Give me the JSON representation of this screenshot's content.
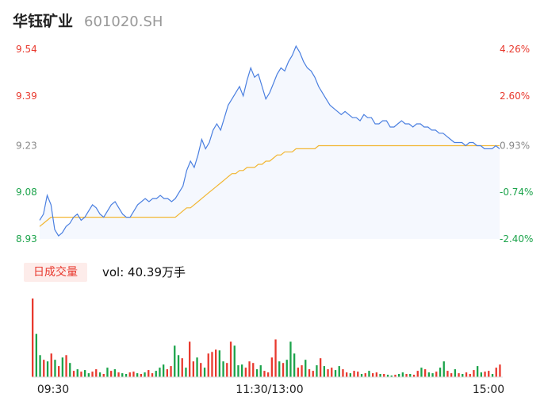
{
  "header": {
    "name": "华钰矿业",
    "code": "601020.SH"
  },
  "volume_legend": {
    "tag": "日成交量",
    "value_text": "vol: 40.39万手"
  },
  "colors": {
    "up": "#e8392e",
    "down": "#1ba34a",
    "price_line": "#4a7fe0",
    "avg_line": "#f2b632",
    "area_fill": "#f5f8fe"
  },
  "chart_data": [
    {
      "type": "line",
      "title": "",
      "y_left_ticks": [
        "9.54",
        "9.39",
        "9.23",
        "9.08",
        "8.93"
      ],
      "y_right_ticks": [
        "4.26%",
        "2.60%",
        "0.93%",
        "-0.74%",
        "-2.40%"
      ],
      "y_left_values": [
        9.54,
        9.39,
        9.23,
        9.08,
        8.93
      ],
      "ylim": [
        8.93,
        9.54
      ],
      "x_ticks": [
        "09:30",
        "11:30/13:00",
        "15:00"
      ],
      "series": [
        {
          "key": "price",
          "values": [
            8.99,
            9.01,
            9.07,
            9.04,
            8.96,
            8.94,
            8.95,
            8.97,
            8.98,
            9.0,
            9.01,
            8.99,
            9.0,
            9.02,
            9.04,
            9.03,
            9.01,
            9.0,
            9.02,
            9.04,
            9.05,
            9.03,
            9.01,
            9.0,
            9.0,
            9.02,
            9.04,
            9.05,
            9.06,
            9.05,
            9.06,
            9.06,
            9.07,
            9.06,
            9.06,
            9.05,
            9.06,
            9.08,
            9.1,
            9.15,
            9.18,
            9.16,
            9.2,
            9.25,
            9.22,
            9.24,
            9.28,
            9.3,
            9.28,
            9.32,
            9.36,
            9.38,
            9.4,
            9.42,
            9.39,
            9.44,
            9.48,
            9.45,
            9.46,
            9.42,
            9.38,
            9.4,
            9.43,
            9.46,
            9.48,
            9.47,
            9.5,
            9.52,
            9.55,
            9.53,
            9.5,
            9.48,
            9.47,
            9.45,
            9.42,
            9.4,
            9.38,
            9.36,
            9.35,
            9.34,
            9.33,
            9.34,
            9.33,
            9.32,
            9.32,
            9.31,
            9.33,
            9.32,
            9.32,
            9.3,
            9.3,
            9.31,
            9.31,
            9.29,
            9.29,
            9.3,
            9.31,
            9.3,
            9.3,
            9.29,
            9.3,
            9.3,
            9.29,
            9.29,
            9.28,
            9.28,
            9.27,
            9.27,
            9.26,
            9.25,
            9.24,
            9.24,
            9.24,
            9.23,
            9.24,
            9.24,
            9.23,
            9.23,
            9.22,
            9.22,
            9.22,
            9.23,
            9.22
          ]
        },
        {
          "key": "average",
          "values": [
            8.97,
            8.98,
            8.99,
            9.0,
            9.0,
            9.0,
            9.0,
            9.0,
            9.0,
            9.0,
            9.0,
            9.0,
            9.0,
            9.0,
            9.0,
            9.0,
            9.0,
            9.0,
            9.0,
            9.0,
            9.0,
            9.0,
            9.0,
            9.0,
            9.0,
            9.0,
            9.0,
            9.0,
            9.0,
            9.0,
            9.0,
            9.0,
            9.0,
            9.0,
            9.0,
            9.0,
            9.0,
            9.01,
            9.02,
            9.03,
            9.03,
            9.04,
            9.05,
            9.06,
            9.07,
            9.08,
            9.09,
            9.1,
            9.11,
            9.12,
            9.13,
            9.14,
            9.14,
            9.15,
            9.15,
            9.16,
            9.16,
            9.16,
            9.17,
            9.17,
            9.18,
            9.18,
            9.19,
            9.2,
            9.2,
            9.21,
            9.21,
            9.21,
            9.22,
            9.22,
            9.22,
            9.22,
            9.22,
            9.22,
            9.23,
            9.23,
            9.23,
            9.23,
            9.23,
            9.23,
            9.23,
            9.23,
            9.23,
            9.23,
            9.23,
            9.23,
            9.23,
            9.23,
            9.23,
            9.23,
            9.23,
            9.23,
            9.23,
            9.23,
            9.23,
            9.23,
            9.23,
            9.23,
            9.23,
            9.23,
            9.23,
            9.23,
            9.23,
            9.23,
            9.23,
            9.23,
            9.23,
            9.23,
            9.23,
            9.23,
            9.23,
            9.23,
            9.23,
            9.23,
            9.23,
            9.23,
            9.23,
            9.23,
            9.23,
            9.23,
            9.23,
            9.23,
            9.23
          ]
        }
      ]
    },
    {
      "type": "bar",
      "title": "",
      "x_ticks": [
        "09:30",
        "11:30/13:00",
        "15:00"
      ],
      "values": [
        100,
        55,
        28,
        22,
        20,
        30,
        22,
        14,
        25,
        28,
        18,
        8,
        10,
        7,
        9,
        5,
        7,
        10,
        6,
        4,
        12,
        8,
        10,
        6,
        5,
        4,
        6,
        7,
        5,
        4,
        6,
        9,
        5,
        8,
        12,
        16,
        10,
        14,
        40,
        28,
        24,
        12,
        45,
        20,
        25,
        18,
        12,
        30,
        32,
        35,
        34,
        20,
        18,
        45,
        40,
        15,
        16,
        12,
        20,
        18,
        10,
        15,
        8,
        6,
        25,
        48,
        20,
        18,
        22,
        45,
        30,
        12,
        15,
        22,
        10,
        8,
        15,
        24,
        14,
        10,
        12,
        9,
        14,
        10,
        6,
        5,
        8,
        7,
        4,
        5,
        8,
        5,
        6,
        4,
        4,
        3,
        2,
        3,
        4,
        6,
        4,
        4,
        3,
        8,
        12,
        10,
        6,
        5,
        7,
        12,
        20,
        8,
        5,
        10,
        5,
        4,
        6,
        4,
        9,
        14,
        6,
        7,
        8,
        4,
        12,
        16
      ],
      "directions": [
        "up",
        "down",
        "down",
        "up",
        "down",
        "up",
        "down",
        "up",
        "down",
        "up",
        "down",
        "up",
        "down",
        "up",
        "down",
        "down",
        "up",
        "up",
        "down",
        "up",
        "down",
        "up",
        "down",
        "up",
        "down",
        "down",
        "up",
        "up",
        "down",
        "up",
        "down",
        "up",
        "up",
        "down",
        "down",
        "down",
        "up",
        "up",
        "down",
        "down",
        "up",
        "down",
        "up",
        "up",
        "down",
        "up",
        "down",
        "up",
        "up",
        "up",
        "down",
        "down",
        "up",
        "up",
        "down",
        "down",
        "down",
        "up",
        "up",
        "up",
        "down",
        "down",
        "up",
        "up",
        "up",
        "up",
        "down",
        "up",
        "down",
        "down",
        "down",
        "up",
        "up",
        "down",
        "up",
        "up",
        "down",
        "up",
        "down",
        "up",
        "up",
        "down",
        "down",
        "up",
        "up",
        "down",
        "up",
        "up",
        "down",
        "up",
        "down",
        "up",
        "up",
        "down",
        "up",
        "down",
        "down",
        "up",
        "down",
        "down",
        "up",
        "down",
        "up",
        "up",
        "down",
        "up",
        "down",
        "down",
        "up",
        "down",
        "down",
        "up",
        "up",
        "down",
        "up",
        "down",
        "up",
        "up",
        "up",
        "down",
        "down",
        "up",
        "up",
        "down",
        "up",
        "up"
      ]
    }
  ]
}
